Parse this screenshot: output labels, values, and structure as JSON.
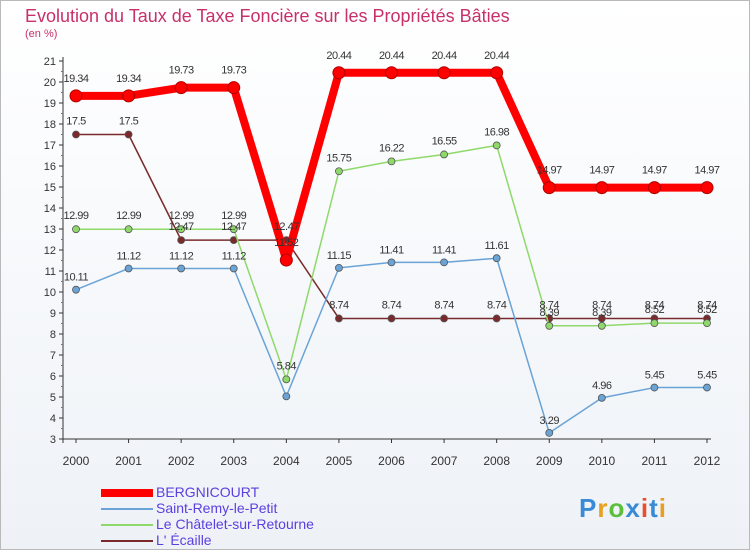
{
  "header": {
    "title": "Evolution du Taux de Taxe Foncière sur les Propriétés Bâties",
    "subtitle": "(en %)"
  },
  "logo": {
    "text": "Proxiti",
    "colors": [
      "#3a8bd6",
      "#e8a020",
      "#5bbf3a",
      "#3a8bd6",
      "#e84f2c",
      "#3a8bd6",
      "#e8a020"
    ]
  },
  "chart_data": {
    "type": "line",
    "title": "Evolution du Taux de Taxe Foncière sur les Propriétés Bâties",
    "ylabel": "(en %)",
    "xlabel": "",
    "categories": [
      "2000",
      "2001",
      "2002",
      "2003",
      "2004",
      "2005",
      "2006",
      "2007",
      "2008",
      "2009",
      "2010",
      "2011",
      "2012"
    ],
    "ylim": [
      3,
      21
    ],
    "yticks": [
      3,
      4,
      5,
      6,
      7,
      8,
      9,
      10,
      11,
      12,
      13,
      14,
      15,
      16,
      17,
      18,
      19,
      20,
      21
    ],
    "grid": false,
    "legend": "bottom-left",
    "series": [
      {
        "name": "BERGNICOURT",
        "color": "#ff0000",
        "width": 8,
        "values": [
          19.34,
          19.34,
          19.73,
          19.73,
          11.52,
          20.44,
          20.44,
          20.44,
          20.44,
          14.97,
          14.97,
          14.97,
          14.97
        ],
        "labels": [
          "19.34",
          "19.34",
          "19.73",
          "19.73",
          "11.52",
          "20.44",
          "20.44",
          "20.44",
          "20.44",
          "14.97",
          "14.97",
          "14.97",
          "14.97"
        ]
      },
      {
        "name": "Saint-Remy-le-Petit",
        "color": "#6aa3d6",
        "width": 1.5,
        "values": [
          10.11,
          11.12,
          11.12,
          11.12,
          5.03,
          11.15,
          11.41,
          11.41,
          11.61,
          3.29,
          4.96,
          5.45,
          5.45
        ],
        "labels": [
          "10.11",
          "11.12",
          "11.12",
          "11.12",
          "",
          "11.15",
          "11.41",
          "11.41",
          "11.61",
          "3.29",
          "4.96",
          "5.45",
          "5.45"
        ]
      },
      {
        "name": "Le Châtelet-sur-Retourne",
        "color": "#8fd96a",
        "width": 1.5,
        "values": [
          12.99,
          12.99,
          12.99,
          12.99,
          5.84,
          15.75,
          16.22,
          16.55,
          16.98,
          8.39,
          8.39,
          8.52,
          8.52
        ],
        "labels": [
          "12.99",
          "12.99",
          "12.99",
          "12.99",
          "5.84",
          "15.75",
          "16.22",
          "16.55",
          "16.98",
          "8.39",
          "8.39",
          "8.52",
          "8.52"
        ]
      },
      {
        "name": "L' Écaille",
        "color": "#7a2a2a",
        "width": 1.5,
        "values": [
          17.5,
          17.5,
          12.47,
          12.47,
          12.47,
          8.74,
          8.74,
          8.74,
          8.74,
          8.74,
          8.74,
          8.74,
          8.74
        ],
        "labels": [
          "17.5",
          "17.5",
          "12.47",
          "12.47",
          "12.47",
          "8.74",
          "8.74",
          "8.74",
          "8.74",
          "8.74",
          "8.74",
          "8.74",
          "8.74"
        ]
      }
    ]
  }
}
